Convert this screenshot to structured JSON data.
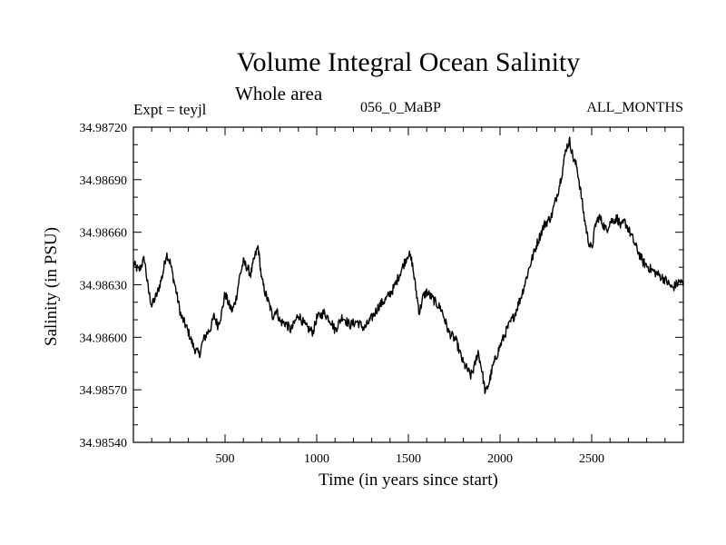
{
  "header": {
    "title": "Volume Integral Ocean Salinity",
    "subtitle": "Whole area",
    "left_label": "Expt = teyjl",
    "center_label": "056_0_MaBP",
    "right_label": "ALL_MONTHS"
  },
  "chart_data": {
    "type": "line",
    "title": "Volume Integral Ocean Salinity",
    "subtitle": "Whole area",
    "xlabel": "Time (in years since start)",
    "ylabel": "Salinity (in PSU)",
    "xlim": [
      0,
      3000
    ],
    "ylim": [
      34.9854,
      34.9872
    ],
    "xticks": [
      500,
      1000,
      1500,
      2000,
      2500
    ],
    "xtick_labels": [
      "500",
      "1000",
      "1500",
      "2000",
      "2500"
    ],
    "yticks": [
      34.9854,
      34.9857,
      34.986,
      34.9863,
      34.9866,
      34.9869,
      34.9872
    ],
    "ytick_labels": [
      "34.98540",
      "34.98570",
      "34.98600",
      "34.98630",
      "34.98660",
      "34.98690",
      "34.98720"
    ],
    "grid": false,
    "line_color": "#000000",
    "series": [
      {
        "name": "salinity",
        "x": [
          0,
          30,
          60,
          80,
          100,
          130,
          160,
          180,
          200,
          230,
          260,
          280,
          300,
          330,
          360,
          380,
          400,
          420,
          440,
          460,
          480,
          500,
          520,
          540,
          560,
          580,
          600,
          620,
          640,
          660,
          680,
          700,
          720,
          740,
          760,
          780,
          800,
          830,
          860,
          900,
          940,
          980,
          1000,
          1040,
          1080,
          1100,
          1140,
          1180,
          1220,
          1260,
          1300,
          1340,
          1380,
          1420,
          1460,
          1500,
          1520,
          1540,
          1560,
          1580,
          1600,
          1640,
          1680,
          1720,
          1760,
          1800,
          1820,
          1840,
          1860,
          1880,
          1900,
          1920,
          1940,
          1960,
          1980,
          2000,
          2040,
          2080,
          2120,
          2160,
          2200,
          2240,
          2280,
          2320,
          2340,
          2360,
          2380,
          2400,
          2420,
          2440,
          2460,
          2480,
          2500,
          2520,
          2540,
          2560,
          2580,
          2600,
          2620,
          2640,
          2660,
          2680,
          2700,
          2740,
          2780,
          2820,
          2860,
          2900,
          2940,
          2980,
          3000
        ],
        "values": [
          34.98642,
          34.98638,
          34.98645,
          34.98628,
          34.98618,
          34.98625,
          34.98636,
          34.98648,
          34.98643,
          34.98628,
          34.98612,
          34.98608,
          34.98603,
          34.98594,
          34.9859,
          34.98598,
          34.98602,
          34.98605,
          34.98612,
          34.98607,
          34.98613,
          34.98625,
          34.98619,
          34.98615,
          34.98622,
          34.98635,
          34.98643,
          34.9864,
          34.98636,
          34.98645,
          34.98652,
          34.98633,
          34.98625,
          34.98619,
          34.98612,
          34.98616,
          34.98609,
          34.98608,
          34.98604,
          34.98613,
          34.98606,
          34.98603,
          34.98611,
          34.98614,
          34.98609,
          34.98604,
          34.98612,
          34.98607,
          34.98609,
          34.98605,
          34.98611,
          34.98618,
          34.98622,
          34.98628,
          34.98638,
          34.98648,
          34.98643,
          34.98628,
          34.98614,
          34.98623,
          34.98626,
          34.98621,
          34.98616,
          34.98603,
          34.98598,
          34.98585,
          34.98582,
          34.98578,
          34.98583,
          34.98592,
          34.98582,
          34.98568,
          34.98574,
          34.98583,
          34.98589,
          34.98595,
          34.98605,
          34.98613,
          34.98625,
          34.9864,
          34.98653,
          34.98664,
          34.98669,
          34.98685,
          34.98695,
          34.98708,
          34.98712,
          34.98702,
          34.98697,
          34.98683,
          34.98668,
          34.98656,
          34.9865,
          34.98664,
          34.98669,
          34.98665,
          34.98661,
          34.98666,
          34.98667,
          34.98668,
          34.98663,
          34.98666,
          34.98662,
          34.98652,
          34.98643,
          34.98639,
          34.98636,
          34.98633,
          34.98628,
          34.98632,
          34.9863
        ]
      }
    ]
  }
}
